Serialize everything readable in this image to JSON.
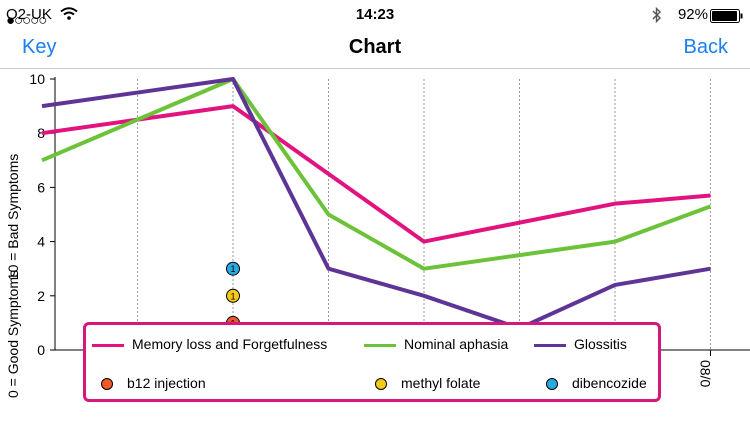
{
  "status_bar": {
    "carrier": "O2-UK",
    "signal_dots": "●○○○○",
    "time": "14:23",
    "battery": "92%"
  },
  "nav": {
    "title": "Chart",
    "left_button": "Key",
    "right_button": "Back"
  },
  "colors": {
    "accent": "#1a7ff0",
    "legend_border": "#d6177c"
  },
  "chart_data": {
    "type": "line",
    "ylabel_bad": "10 = Bad Symptoms",
    "ylabel_good": "0 = Good Symptoms",
    "ylim": [
      0,
      10
    ],
    "yticks": [
      0,
      2,
      4,
      6,
      8,
      10
    ],
    "x_partial_label": "08/0",
    "x": [
      0,
      1,
      2,
      3,
      4,
      5,
      6,
      7
    ],
    "series": [
      {
        "name": "Memory loss and Forgetfulness",
        "color": "#e2137f",
        "values": [
          8.0,
          8.5,
          9.0,
          6.5,
          4.0,
          4.7,
          5.4,
          5.7
        ]
      },
      {
        "name": "Nominal aphasia",
        "color": "#6cc33a",
        "values": [
          7.0,
          8.5,
          10.0,
          5.0,
          3.0,
          3.5,
          4.0,
          5.3
        ]
      },
      {
        "name": "Glossitis",
        "color": "#5e3596",
        "values": [
          9.0,
          9.5,
          10.0,
          3.0,
          2.0,
          0.8,
          2.4,
          3.0
        ]
      }
    ],
    "markers": [
      {
        "name": "b12 injection",
        "color": "#ef5a28",
        "x": 2,
        "y": 1,
        "label": "1"
      },
      {
        "name": "methyl folate",
        "color": "#f5c918",
        "x": 2,
        "y": 2,
        "label": "1"
      },
      {
        "name": "dibencozide",
        "color": "#29a9e1",
        "x": 2,
        "y": 3,
        "label": "1"
      }
    ]
  }
}
